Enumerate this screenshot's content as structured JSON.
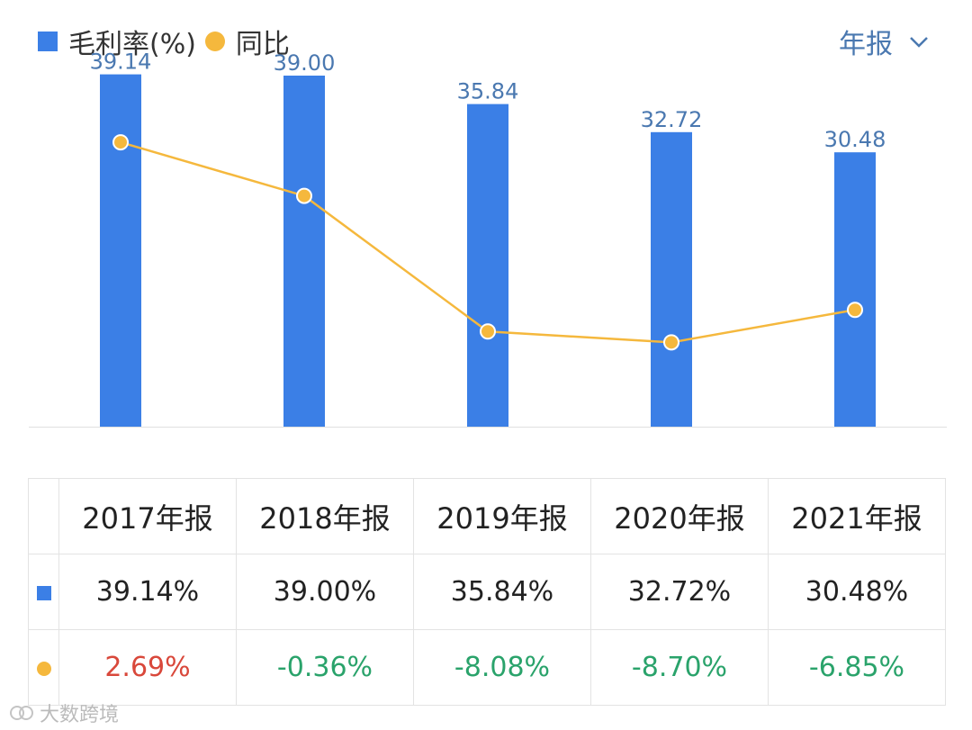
{
  "legend": {
    "bar_label": "毛利率(%)",
    "line_label": "同比"
  },
  "period_selector": {
    "label": "年报"
  },
  "colors": {
    "bar": "#3b7fe6",
    "line": "#f5b83d",
    "bar_label": "#4a78b0",
    "positive": "#d9483b",
    "negative": "#2aa36b"
  },
  "chart_data": {
    "type": "bar",
    "categories": [
      "2017年报",
      "2018年报",
      "2019年报",
      "2020年报",
      "2021年报"
    ],
    "series": [
      {
        "name": "毛利率(%)",
        "type": "bar",
        "values": [
          39.14,
          39.0,
          35.84,
          32.72,
          30.48
        ],
        "labels": [
          "39.14",
          "39.00",
          "35.84",
          "32.72",
          "30.48"
        ]
      },
      {
        "name": "同比",
        "type": "line",
        "values": [
          2.69,
          -0.36,
          -8.08,
          -8.7,
          -6.85
        ]
      }
    ],
    "bar_ylim": [
      0,
      40
    ],
    "line_ylim": [
      -13.5,
      7.0
    ],
    "title": "",
    "xlabel": "",
    "ylabel": ""
  },
  "table": {
    "headers": [
      "2017年报",
      "2018年报",
      "2019年报",
      "2020年报",
      "2021年报"
    ],
    "rows": [
      {
        "icon": "bar-legend-icon",
        "cells": [
          "39.14%",
          "39.00%",
          "35.84%",
          "32.72%",
          "30.48%"
        ]
      },
      {
        "icon": "dot-legend-icon",
        "cells": [
          "2.69%",
          "-0.36%",
          "-8.08%",
          "-8.70%",
          "-6.85%"
        ]
      }
    ]
  },
  "watermark": {
    "text": "大数跨境"
  }
}
